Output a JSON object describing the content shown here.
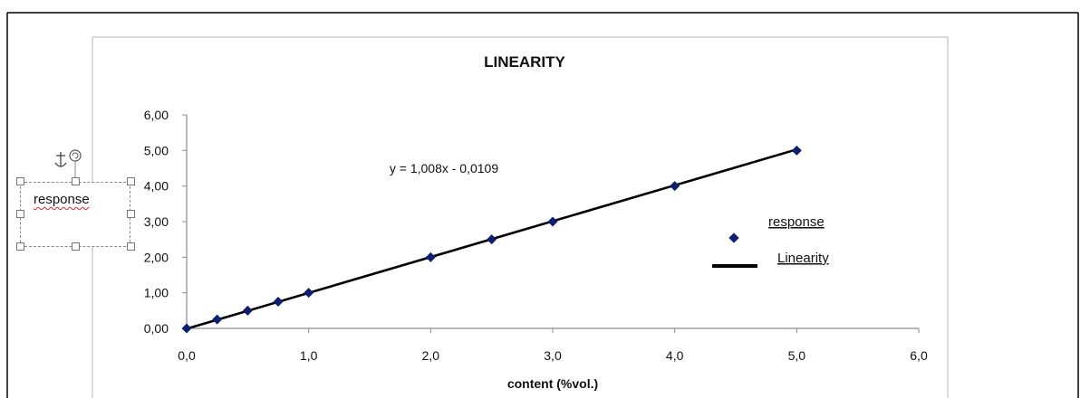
{
  "chart_data": {
    "type": "scatter",
    "title": "LINEARITY",
    "xlabel": "content (%vol.)",
    "ylabel": "",
    "xlim": [
      0,
      6
    ],
    "ylim": [
      0,
      6
    ],
    "x_ticks": [
      "0,0",
      "1,0",
      "2,0",
      "3,0",
      "4,0",
      "5,0",
      "6,0"
    ],
    "y_ticks": [
      "0,00",
      "1,00",
      "2,00",
      "3,00",
      "4,00",
      "5,00",
      "6,00"
    ],
    "grid": false,
    "legend_position": "right",
    "series": [
      {
        "name": "response",
        "type": "scatter",
        "color": "#0d1f6e",
        "x": [
          0,
          0.25,
          0.5,
          0.75,
          1.0,
          2.0,
          2.5,
          3.0,
          4.0,
          5.0
        ],
        "y": [
          0,
          0.25,
          0.5,
          0.75,
          1.0,
          2.0,
          2.5,
          3.0,
          4.0,
          5.0
        ]
      },
      {
        "name": "Linearity",
        "type": "line",
        "color": "#000000",
        "x": [
          0,
          5.0
        ],
        "y": [
          -0.0109,
          5.0291
        ]
      }
    ],
    "annotation": "y = 1,008x - 0,0109"
  },
  "text_box": {
    "text": "response"
  }
}
